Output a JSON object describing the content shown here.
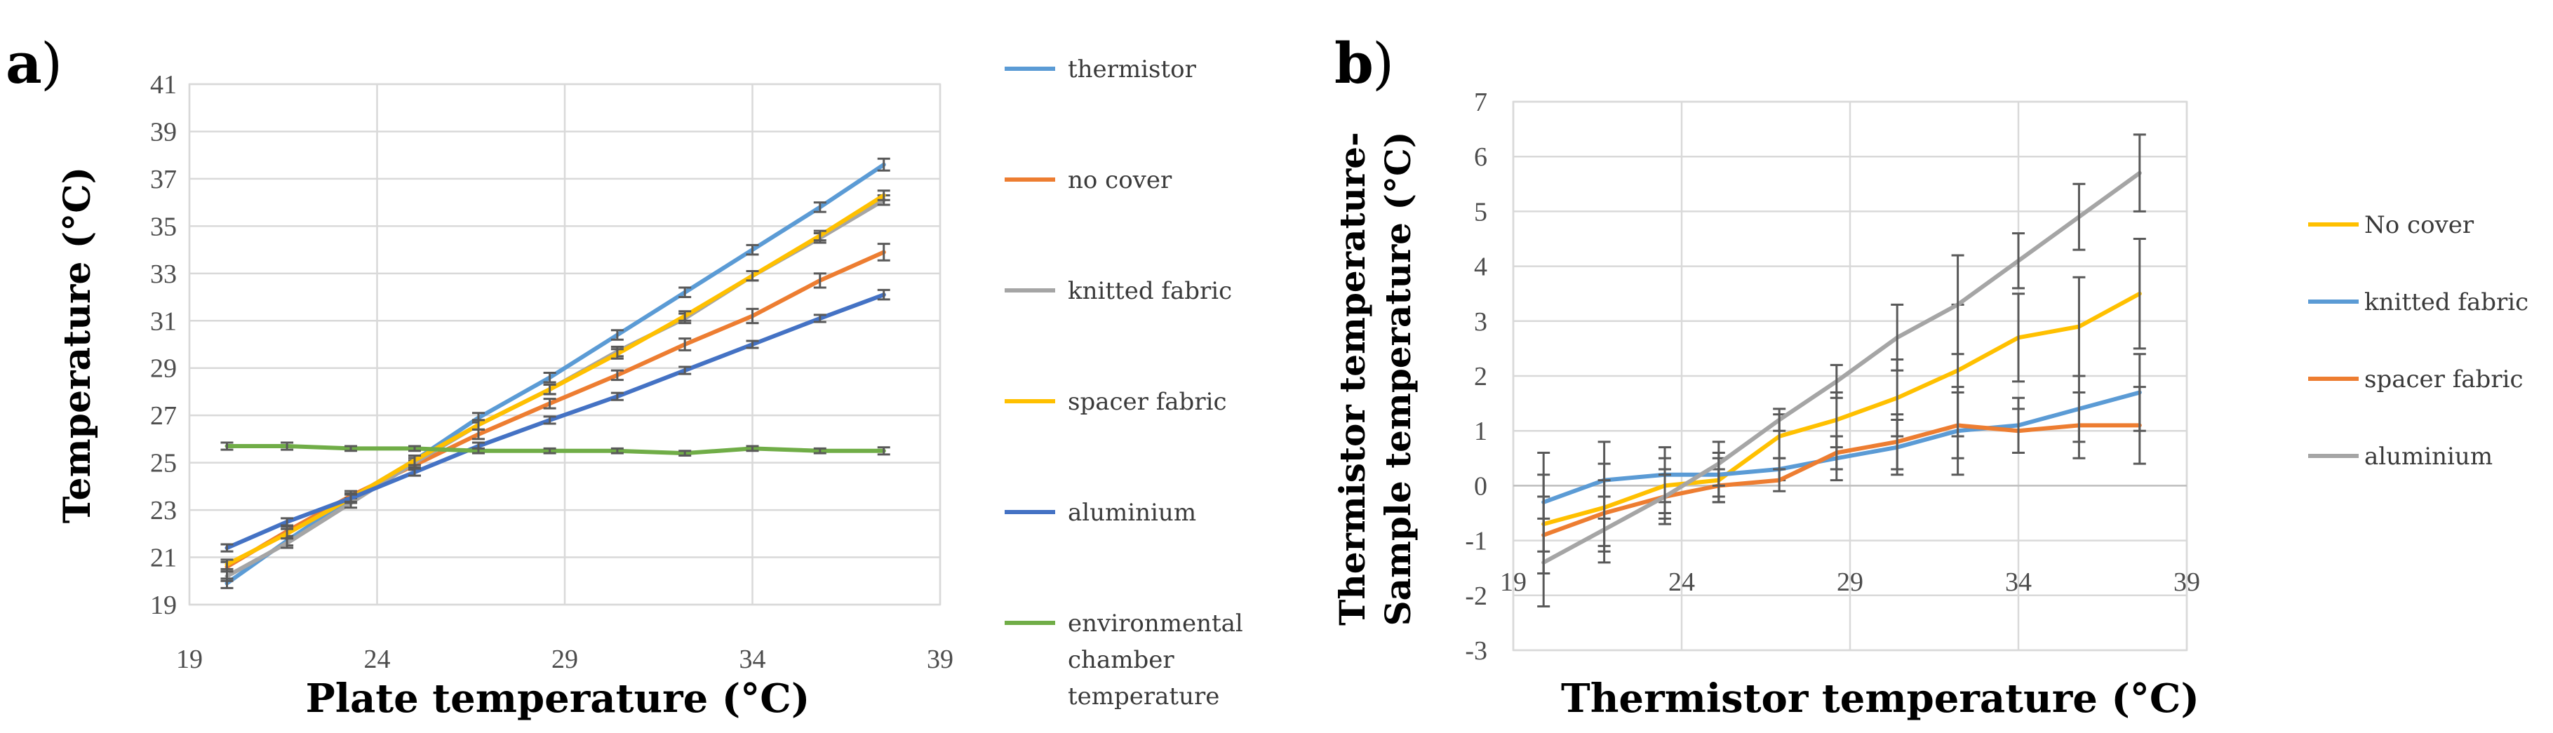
{
  "panels": {
    "a_letter": "a",
    "b_letter": "b",
    "paren": ")"
  },
  "chart_data": [
    {
      "type": "line",
      "xlabel": "Plate temperature (°C)",
      "ylabel": "Temperature (°C)",
      "xlim": [
        19,
        39
      ],
      "ylim": [
        19,
        41
      ],
      "xticks": [
        19,
        24,
        29,
        34,
        39
      ],
      "yticks": [
        19,
        21,
        23,
        25,
        27,
        29,
        31,
        33,
        35,
        37,
        39,
        41
      ],
      "grid": true,
      "legend_position": "right",
      "series": [
        {
          "name": "thermistor",
          "color": "#5b9bd5",
          "x": [
            20.0,
            21.6,
            23.3,
            25.0,
            26.7,
            28.6,
            30.4,
            32.2,
            34.0,
            35.8,
            37.5
          ],
          "y": [
            19.9,
            21.7,
            23.5,
            25.1,
            26.9,
            28.6,
            30.4,
            32.2,
            34.0,
            35.8,
            37.6
          ],
          "err": [
            0.2,
            0.2,
            0.2,
            0.2,
            0.2,
            0.2,
            0.2,
            0.2,
            0.2,
            0.2,
            0.25
          ]
        },
        {
          "name": "no cover",
          "color": "#ed7d31",
          "x": [
            20.0,
            21.6,
            23.3,
            25.0,
            26.7,
            28.6,
            30.4,
            32.2,
            34.0,
            35.8,
            37.5
          ],
          "y": [
            20.6,
            22.1,
            23.6,
            24.9,
            26.2,
            27.5,
            28.7,
            30.0,
            31.2,
            32.7,
            33.9
          ],
          "err": [
            0.2,
            0.2,
            0.2,
            0.2,
            0.2,
            0.2,
            0.2,
            0.25,
            0.3,
            0.3,
            0.35
          ]
        },
        {
          "name": "knitted fabric",
          "color": "#a5a5a5",
          "x": [
            20.0,
            21.6,
            23.3,
            25.0,
            26.7,
            28.6,
            30.4,
            32.2,
            34.0,
            35.8,
            37.5
          ],
          "y": [
            20.2,
            21.6,
            23.3,
            25.0,
            26.6,
            28.1,
            29.7,
            31.1,
            32.9,
            34.5,
            36.1
          ],
          "err": [
            0.2,
            0.2,
            0.2,
            0.2,
            0.2,
            0.2,
            0.2,
            0.2,
            0.2,
            0.2,
            0.2
          ]
        },
        {
          "name": "spacer fabric",
          "color": "#ffc000",
          "x": [
            20.0,
            21.6,
            23.3,
            25.0,
            26.7,
            28.6,
            30.4,
            32.2,
            34.0,
            35.8,
            37.5
          ],
          "y": [
            20.7,
            22.0,
            23.5,
            25.1,
            26.6,
            28.1,
            29.6,
            31.2,
            32.9,
            34.6,
            36.3
          ],
          "err": [
            0.2,
            0.2,
            0.2,
            0.2,
            0.2,
            0.2,
            0.2,
            0.2,
            0.2,
            0.2,
            0.2
          ]
        },
        {
          "name": "aluminium",
          "color": "#4472c4",
          "x": [
            20.0,
            21.6,
            23.3,
            25.0,
            26.7,
            28.6,
            30.4,
            32.2,
            34.0,
            35.8,
            37.5
          ],
          "y": [
            21.4,
            22.5,
            23.5,
            24.6,
            25.7,
            26.8,
            27.8,
            28.9,
            30.0,
            31.1,
            32.1
          ],
          "err": [
            0.15,
            0.15,
            0.15,
            0.15,
            0.15,
            0.15,
            0.15,
            0.15,
            0.15,
            0.15,
            0.2
          ]
        },
        {
          "name": "environmental chamber temperature",
          "color": "#70ad47",
          "x": [
            20.0,
            21.6,
            23.3,
            25.0,
            26.7,
            28.6,
            30.4,
            32.2,
            34.0,
            35.8,
            37.5
          ],
          "y": [
            25.7,
            25.7,
            25.6,
            25.6,
            25.5,
            25.5,
            25.5,
            25.4,
            25.6,
            25.5,
            25.5
          ],
          "err": [
            0.15,
            0.15,
            0.1,
            0.1,
            0.1,
            0.1,
            0.1,
            0.1,
            0.1,
            0.1,
            0.15
          ]
        }
      ]
    },
    {
      "type": "line",
      "xlabel": "Thermistor temperature (°C)",
      "ylabel_line1": "Thermistor temperature-",
      "ylabel_line2": "Sample temperature (°C)",
      "xlim": [
        19,
        39
      ],
      "ylim": [
        -3,
        7
      ],
      "xticks": [
        19,
        24,
        29,
        34,
        39
      ],
      "yticks": [
        -3,
        -2,
        -1,
        0,
        1,
        2,
        3,
        4,
        5,
        6,
        7
      ],
      "grid": true,
      "legend_position": "right",
      "series": [
        {
          "name": "No cover",
          "color": "#ffc000",
          "x": [
            19.9,
            21.7,
            23.5,
            25.1,
            26.9,
            28.6,
            30.4,
            32.2,
            34.0,
            35.8,
            37.6
          ],
          "y": [
            -0.7,
            -0.4,
            0.0,
            0.1,
            0.9,
            1.2,
            1.6,
            2.1,
            2.7,
            2.9,
            3.5
          ],
          "err": [
            0.9,
            0.8,
            0.5,
            0.4,
            0.4,
            0.5,
            0.7,
            1.2,
            0.8,
            0.9,
            1.0
          ]
        },
        {
          "name": "knitted fabric",
          "color": "#5b9bd5",
          "x": [
            19.9,
            21.7,
            23.5,
            25.1,
            26.9,
            28.6,
            30.4,
            32.2,
            34.0,
            35.8,
            37.6
          ],
          "y": [
            -0.3,
            0.1,
            0.2,
            0.2,
            0.3,
            0.5,
            0.7,
            1.0,
            1.1,
            1.4,
            1.7
          ],
          "err": [
            0.9,
            0.7,
            0.5,
            0.4,
            0.2,
            0.4,
            0.5,
            0.8,
            0.5,
            0.6,
            0.7
          ]
        },
        {
          "name": "spacer fabric",
          "color": "#ed7d31",
          "x": [
            19.9,
            21.7,
            23.5,
            25.1,
            26.9,
            28.6,
            30.4,
            32.2,
            34.0,
            35.8,
            37.6
          ],
          "y": [
            -0.9,
            -0.5,
            -0.2,
            0.0,
            0.1,
            0.6,
            0.8,
            1.1,
            1.0,
            1.1,
            1.1
          ],
          "err": [
            0.7,
            0.6,
            0.4,
            0.3,
            0.2,
            0.3,
            0.5,
            0.6,
            0.4,
            0.6,
            0.7
          ]
        },
        {
          "name": "aluminium",
          "color": "#a5a5a5",
          "x": [
            19.9,
            21.7,
            23.5,
            25.1,
            26.9,
            28.6,
            30.4,
            32.2,
            34.0,
            35.8,
            37.6
          ],
          "y": [
            -1.4,
            -0.8,
            -0.2,
            0.4,
            1.2,
            1.9,
            2.7,
            3.3,
            4.1,
            4.9,
            5.7
          ],
          "err": [
            0.8,
            0.6,
            0.5,
            0.4,
            0.2,
            0.3,
            0.6,
            0.9,
            0.5,
            0.6,
            0.7
          ]
        }
      ]
    }
  ]
}
